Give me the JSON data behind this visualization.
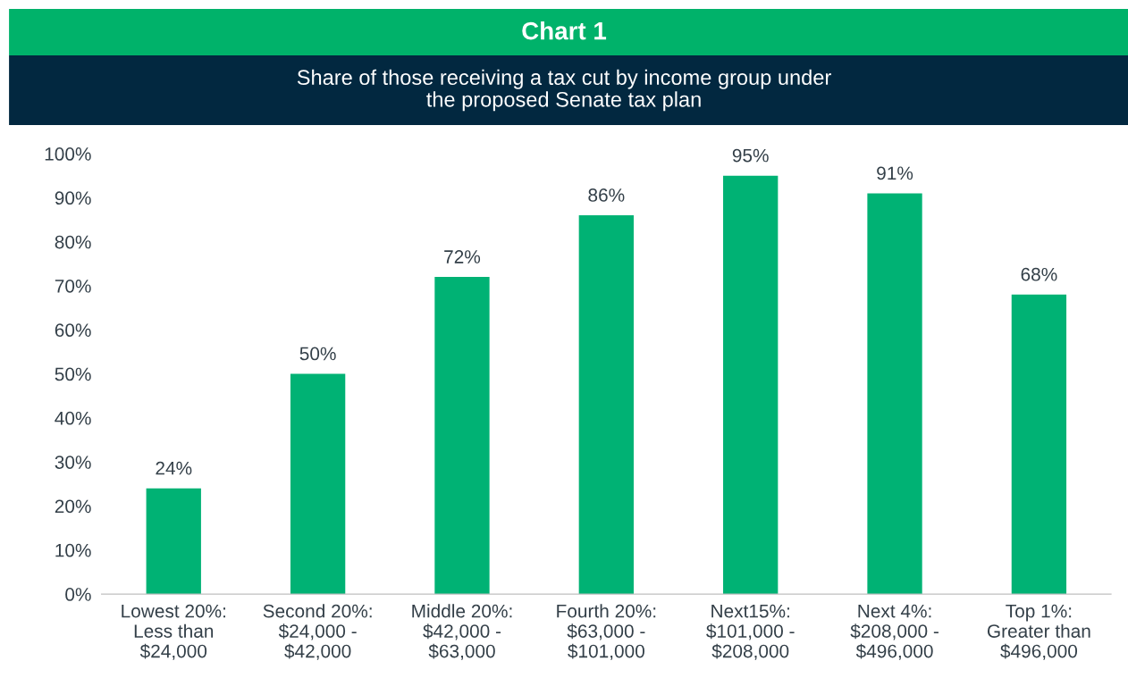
{
  "chart_data": {
    "type": "bar",
    "title": "Chart 1",
    "subtitle": "Share of those receiving a tax cut by income group under\nthe proposed Senate tax plan",
    "categories": [
      "Lowest 20%:\nLess than\n$24,000",
      "Second 20%:\n$24,000 -\n$42,000",
      "Middle 20%:\n$42,000 -\n$63,000",
      "Fourth 20%:\n$63,000 -\n$101,000",
      "Next15%:\n$101,000 -\n$208,000",
      "Next 4%:\n$208,000 -\n$496,000",
      "Top 1%:\nGreater than\n$496,000"
    ],
    "values": [
      24,
      50,
      72,
      86,
      95,
      91,
      68
    ],
    "value_labels": [
      "24%",
      "50%",
      "72%",
      "86%",
      "95%",
      "91%",
      "68%"
    ],
    "color": "#00b274",
    "ylim": [
      0,
      100
    ],
    "yticks": [
      {
        "value": 0,
        "label": "0%"
      },
      {
        "value": 10,
        "label": "10%"
      },
      {
        "value": 20,
        "label": "20%"
      },
      {
        "value": 30,
        "label": "30%"
      },
      {
        "value": 40,
        "label": "40%"
      },
      {
        "value": 50,
        "label": "50%"
      },
      {
        "value": 60,
        "label": "60%"
      },
      {
        "value": 70,
        "label": "70%"
      },
      {
        "value": 80,
        "label": "80%"
      },
      {
        "value": 90,
        "label": "90%"
      },
      {
        "value": 100,
        "label": "100%"
      }
    ],
    "grid": false,
    "legend": false
  }
}
